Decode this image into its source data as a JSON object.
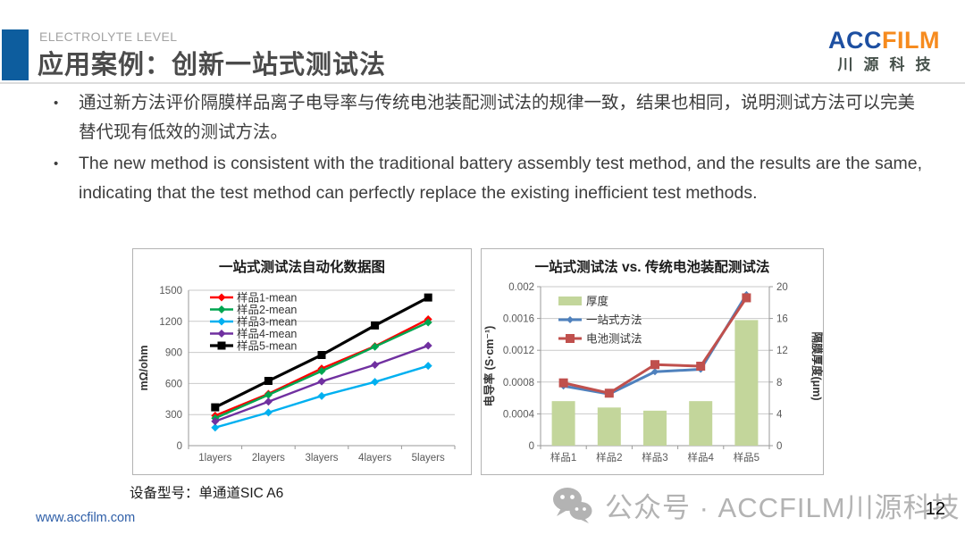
{
  "header": {
    "eyebrow": "ELECTROLYTE LEVEL",
    "title": "应用案例：创新一站式测试法",
    "logo": {
      "acc": "ACC",
      "film": "FILM",
      "subtitle": "川源科技"
    }
  },
  "bullet_glyph": "•",
  "bullets": [
    "通过新方法评价隔膜样品离子电导率与传统电池装配测试法的规律一致，结果也相同，说明测试方法可以完美替代现有低效的测试方法。",
    "The new method is consistent with the traditional battery assembly test method, and the results are the same, indicating that the test method can perfectly replace the existing inefficient test methods."
  ],
  "device_note": "设备型号：单通道SIC A6",
  "footer": {
    "url": "www.accfilm.com",
    "wechat_icon": "wechat-icon",
    "watermark": "公众号 · ACCFILM川源科技",
    "page_number": "12"
  },
  "colors": {
    "accent_blue": "#0d5d9e",
    "logo_blue": "#1d4fa1",
    "logo_orange": "#f68b1f",
    "gridline": "#c9c9c9",
    "axis": "#9a9a9a",
    "tick_text": "#595959",
    "watermark_gray": "#b3b3b3"
  },
  "chart_data": [
    {
      "type": "line",
      "title": "一站式测试法自动化数据图",
      "categories": [
        "1layers",
        "2layers",
        "3layers",
        "4layers",
        "5layers"
      ],
      "ylabel": "mΩ/ohm",
      "ylim": [
        0,
        1500
      ],
      "yticks": [
        0,
        300,
        600,
        900,
        1200,
        1500
      ],
      "grid": true,
      "legend_position": "inside-top-left",
      "series": [
        {
          "name": "样品1-mean",
          "color": "#ff0000",
          "marker": "diamond",
          "values": [
            290,
            500,
            745,
            960,
            1220
          ]
        },
        {
          "name": "样品2-mean",
          "color": "#00a550",
          "marker": "diamond",
          "values": [
            265,
            490,
            720,
            955,
            1190
          ]
        },
        {
          "name": "样品3-mean",
          "color": "#00b0f0",
          "marker": "diamond",
          "values": [
            175,
            320,
            480,
            615,
            770
          ]
        },
        {
          "name": "样品4-mean",
          "color": "#7030a0",
          "marker": "diamond",
          "values": [
            235,
            425,
            620,
            780,
            965
          ]
        },
        {
          "name": "样品5-mean",
          "color": "#000000",
          "marker": "square",
          "values": [
            370,
            625,
            875,
            1160,
            1430
          ]
        }
      ]
    },
    {
      "type": "combo-bar-line",
      "title": "一站式测试法 vs. 传统电池装配测试法",
      "categories": [
        "样品1",
        "样品2",
        "样品3",
        "样品4",
        "样品5"
      ],
      "ylabel_left": "电导率 (S·cm⁻¹)",
      "ylabel_right": "隔膜厚度(μm)",
      "ylim_left": [
        0,
        0.002
      ],
      "ytick_labels_left": [
        "0",
        "0.0004",
        "0.0008",
        "0.0012",
        "0.0016",
        "0.002"
      ],
      "ylim_right": [
        0,
        20
      ],
      "ytick_labels_right": [
        "0",
        "4",
        "8",
        "12",
        "16",
        "20"
      ],
      "grid": true,
      "legend_position": "inside-top-left",
      "bar_series": {
        "name": "厚度",
        "color": "#c3d69b",
        "axis": "right",
        "values": [
          5.6,
          4.8,
          4.4,
          5.6,
          15.8
        ]
      },
      "line_series": [
        {
          "name": "一站式方法",
          "color": "#4f81bd",
          "marker": "diamond",
          "values": [
            0.00075,
            0.00065,
            0.00093,
            0.00096,
            0.0019
          ]
        },
        {
          "name": "电池测试法",
          "color": "#c0504d",
          "marker": "square",
          "values": [
            0.00079,
            0.00066,
            0.00102,
            0.001,
            0.00186
          ]
        }
      ]
    }
  ]
}
